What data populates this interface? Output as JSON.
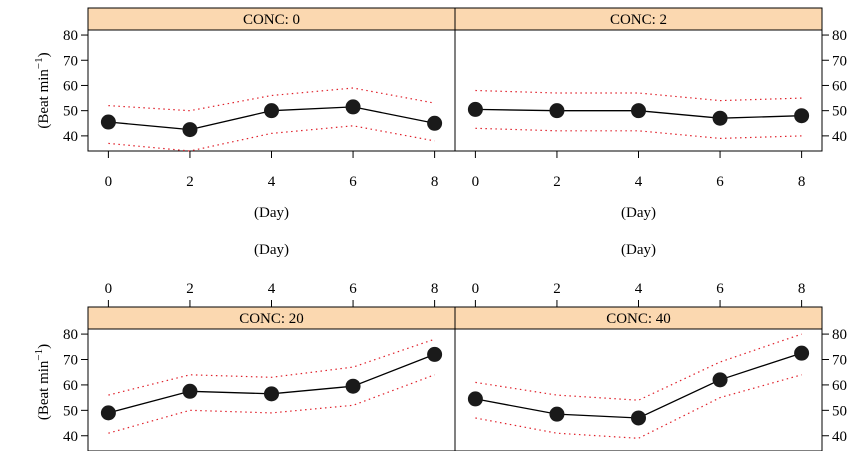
{
  "chart_data": {
    "type": "line",
    "layout": "trellis 2x2",
    "x_label": "(Day)",
    "y_label": "(Beat min",
    "y_label_sup": "−1",
    "y_label_close": ")",
    "x_ticks": [
      0,
      2,
      4,
      6,
      8
    ],
    "y_ticks": [
      40,
      50,
      60,
      70,
      80
    ],
    "xlim": [
      -0.5,
      8.5
    ],
    "ylim": [
      34,
      82
    ],
    "colors": {
      "strip_fill": "#fbd8b0",
      "line": "#000000",
      "point": "#1a1a1a",
      "ci": "#e0202a"
    },
    "x": [
      0,
      2,
      4,
      6,
      8
    ],
    "panels": [
      {
        "strip": "CONC: 0",
        "values": [
          45.5,
          42.5,
          50,
          51.5,
          45
        ],
        "ci_upper": [
          52,
          50,
          56,
          59,
          53
        ],
        "ci_lower": [
          37,
          34,
          41,
          44,
          38
        ]
      },
      {
        "strip": "CONC: 2",
        "values": [
          50.5,
          50,
          50,
          47,
          48
        ],
        "ci_upper": [
          58,
          57,
          57,
          54,
          55
        ],
        "ci_lower": [
          43,
          42,
          42,
          39,
          40
        ]
      },
      {
        "strip": "CONC: 20",
        "values": [
          49,
          57.5,
          56.5,
          59.5,
          72
        ],
        "ci_upper": [
          56,
          64,
          63,
          67,
          78
        ],
        "ci_lower": [
          41,
          50,
          49,
          52,
          64
        ]
      },
      {
        "strip": "CONC: 40",
        "values": [
          54.5,
          48.5,
          47,
          62,
          72.5
        ],
        "ci_upper": [
          61,
          56,
          54,
          69,
          80
        ],
        "ci_lower": [
          47,
          41,
          39,
          55,
          64
        ]
      }
    ]
  }
}
